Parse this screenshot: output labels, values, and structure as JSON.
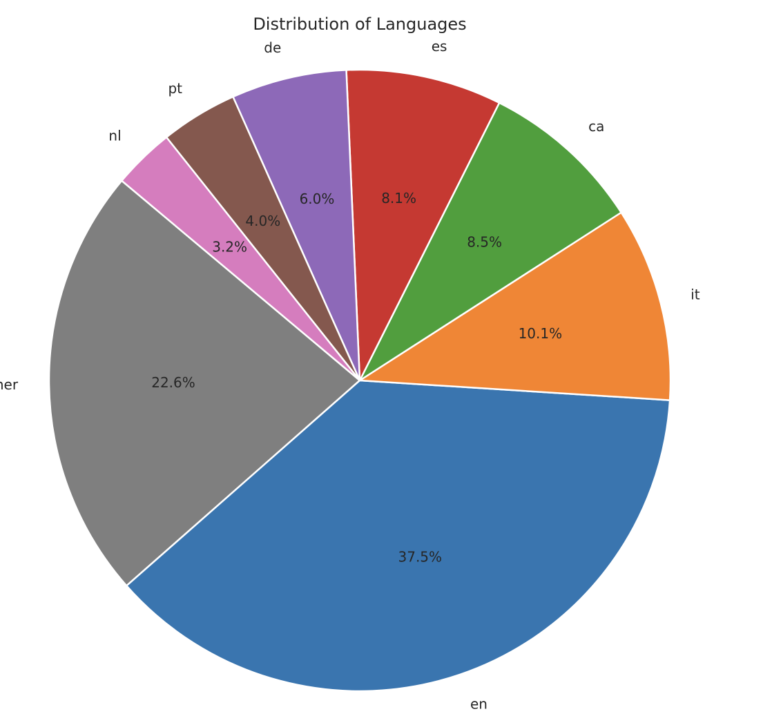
{
  "chart_data": {
    "type": "pie",
    "title": "Distribution of Languages",
    "start_angle_deg": 140,
    "direction": "counterclockwise",
    "slices": [
      {
        "label": "Other",
        "value": 22.6,
        "pct_label": "22.6%",
        "color": "#7f7f7f"
      },
      {
        "label": "en",
        "value": 37.5,
        "pct_label": "37.5%",
        "color": "#3a75af"
      },
      {
        "label": "it",
        "value": 10.1,
        "pct_label": "10.1%",
        "color": "#ef8636"
      },
      {
        "label": "ca",
        "value": 8.5,
        "pct_label": "8.5%",
        "color": "#519e3e"
      },
      {
        "label": "es",
        "value": 8.1,
        "pct_label": "8.1%",
        "color": "#c53932"
      },
      {
        "label": "de",
        "value": 6.0,
        "pct_label": "6.0%",
        "color": "#8d69b8"
      },
      {
        "label": "pt",
        "value": 4.0,
        "pct_label": "4.0%",
        "color": "#84584e"
      },
      {
        "label": "nl",
        "value": 3.2,
        "pct_label": "3.2%",
        "color": "#d57dbe"
      }
    ]
  }
}
